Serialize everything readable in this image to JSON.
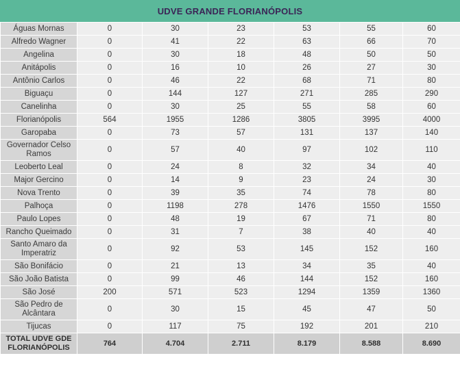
{
  "title": "UDVE GRANDE FLORIANÓPOLIS",
  "rows": [
    {
      "name": "Águas Mornas",
      "values": [
        "0",
        "30",
        "23",
        "53",
        "55",
        "60"
      ]
    },
    {
      "name": "Alfredo Wagner",
      "values": [
        "0",
        "41",
        "22",
        "63",
        "66",
        "70"
      ]
    },
    {
      "name": "Angelina",
      "values": [
        "0",
        "30",
        "18",
        "48",
        "50",
        "50"
      ]
    },
    {
      "name": "Anitápolis",
      "values": [
        "0",
        "16",
        "10",
        "26",
        "27",
        "30"
      ]
    },
    {
      "name": "Antônio Carlos",
      "values": [
        "0",
        "46",
        "22",
        "68",
        "71",
        "80"
      ]
    },
    {
      "name": "Biguaçu",
      "values": [
        "0",
        "144",
        "127",
        "271",
        "285",
        "290"
      ]
    },
    {
      "name": "Canelinha",
      "values": [
        "0",
        "30",
        "25",
        "55",
        "58",
        "60"
      ]
    },
    {
      "name": "Florianópolis",
      "values": [
        "564",
        "1955",
        "1286",
        "3805",
        "3995",
        "4000"
      ]
    },
    {
      "name": "Garopaba",
      "values": [
        "0",
        "73",
        "57",
        "131",
        "137",
        "140"
      ]
    },
    {
      "name": "Governador Celso Ramos",
      "values": [
        "0",
        "57",
        "40",
        "97",
        "102",
        "110"
      ]
    },
    {
      "name": "Leoberto Leal",
      "values": [
        "0",
        "24",
        "8",
        "32",
        "34",
        "40"
      ]
    },
    {
      "name": "Major Gercino",
      "values": [
        "0",
        "14",
        "9",
        "23",
        "24",
        "30"
      ]
    },
    {
      "name": "Nova Trento",
      "values": [
        "0",
        "39",
        "35",
        "74",
        "78",
        "80"
      ]
    },
    {
      "name": "Palhoça",
      "values": [
        "0",
        "1198",
        "278",
        "1476",
        "1550",
        "1550"
      ]
    },
    {
      "name": "Paulo Lopes",
      "values": [
        "0",
        "48",
        "19",
        "67",
        "71",
        "80"
      ]
    },
    {
      "name": "Rancho Queimado",
      "values": [
        "0",
        "31",
        "7",
        "38",
        "40",
        "40"
      ]
    },
    {
      "name": "Santo Amaro da Imperatriz",
      "values": [
        "0",
        "92",
        "53",
        "145",
        "152",
        "160"
      ]
    },
    {
      "name": "São Bonifácio",
      "values": [
        "0",
        "21",
        "13",
        "34",
        "35",
        "40"
      ]
    },
    {
      "name": "São João Batista",
      "values": [
        "0",
        "99",
        "46",
        "144",
        "152",
        "160"
      ]
    },
    {
      "name": "São José",
      "values": [
        "200",
        "571",
        "523",
        "1294",
        "1359",
        "1360"
      ]
    },
    {
      "name": "São Pedro de Alcântara",
      "values": [
        "0",
        "30",
        "15",
        "45",
        "47",
        "50"
      ]
    },
    {
      "name": "Tijucas",
      "values": [
        "0",
        "117",
        "75",
        "192",
        "201",
        "210"
      ]
    }
  ],
  "total": {
    "name": "TOTAL UDVE GDE FLORIANÓPOLIS",
    "values": [
      "764",
      "4.704",
      "2.711",
      "8.179",
      "8.588",
      "8.690"
    ]
  },
  "colors": {
    "header_bg": "#5bb89a",
    "header_text": "#3b2456",
    "name_bg": "#d6d6d6",
    "value_bg": "#eeeeee",
    "total_bg": "#cfcfcf"
  }
}
